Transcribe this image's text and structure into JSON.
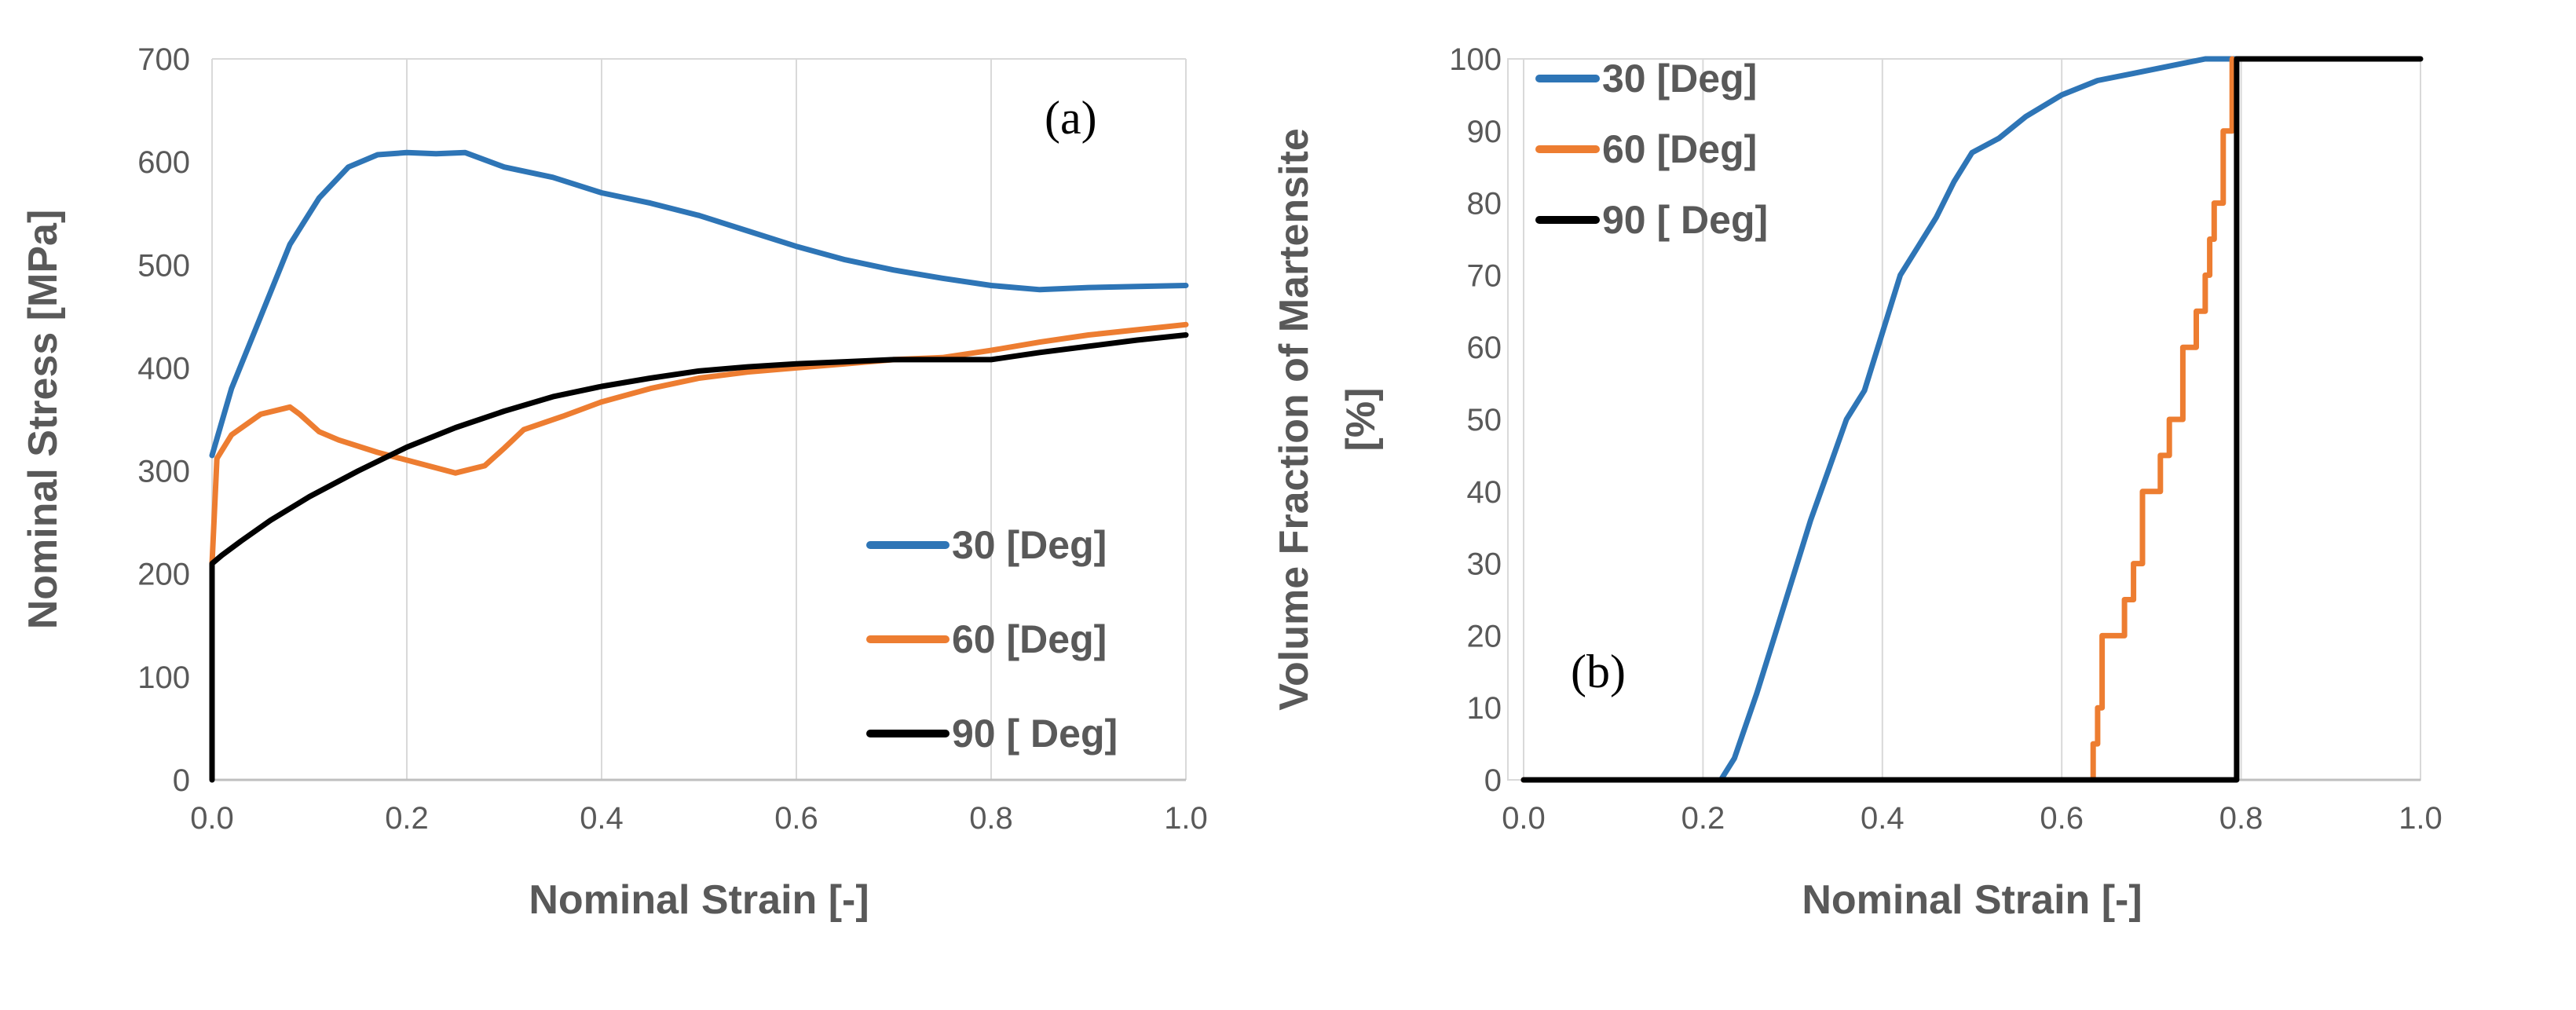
{
  "colors": {
    "s30": "#2e75b6",
    "s60": "#ed7d31",
    "s90": "#000000"
  },
  "chart_data": [
    {
      "type": "line",
      "panel_label": "(a)",
      "xlabel": "Nominal Strain [-]",
      "ylabel": "Nominal Stress [MPa]",
      "xlim": [
        0,
        1.0
      ],
      "ylim": [
        0,
        700
      ],
      "xticks": [
        "0.0",
        "0.2",
        "0.4",
        "0.6",
        "0.8",
        "1.0"
      ],
      "yticks": [
        "0",
        "100",
        "200",
        "300",
        "400",
        "500",
        "600",
        "700"
      ],
      "grid": "vertical",
      "legend_position": "bottom-right",
      "series": [
        {
          "name": "30 [Deg]",
          "x": [
            0.0,
            0.02,
            0.05,
            0.08,
            0.11,
            0.14,
            0.17,
            0.2,
            0.23,
            0.26,
            0.3,
            0.35,
            0.4,
            0.45,
            0.5,
            0.55,
            0.6,
            0.65,
            0.7,
            0.75,
            0.8,
            0.85,
            0.9,
            0.95,
            1.0
          ],
          "y": [
            315,
            380,
            450,
            520,
            565,
            595,
            607,
            609,
            608,
            609,
            595,
            585,
            570,
            560,
            548,
            533,
            518,
            505,
            495,
            487,
            480,
            476,
            478,
            479,
            480
          ]
        },
        {
          "name": "60 [Deg]",
          "x": [
            0.0,
            0.005,
            0.02,
            0.05,
            0.08,
            0.09,
            0.11,
            0.13,
            0.17,
            0.21,
            0.25,
            0.28,
            0.3,
            0.32,
            0.36,
            0.4,
            0.45,
            0.5,
            0.55,
            0.6,
            0.65,
            0.7,
            0.75,
            0.8,
            0.85,
            0.9,
            0.95,
            1.0
          ],
          "y": [
            210,
            312,
            335,
            355,
            362,
            355,
            338,
            330,
            318,
            308,
            298,
            305,
            322,
            340,
            353,
            367,
            380,
            390,
            396,
            400,
            404,
            408,
            410,
            417,
            425,
            432,
            437,
            442
          ]
        },
        {
          "name": "90 [ Deg]",
          "x": [
            0.0,
            0.0,
            0.01,
            0.03,
            0.06,
            0.1,
            0.15,
            0.2,
            0.25,
            0.3,
            0.35,
            0.4,
            0.45,
            0.5,
            0.55,
            0.6,
            0.65,
            0.7,
            0.75,
            0.8,
            0.85,
            0.9,
            0.95,
            1.0
          ],
          "y": [
            0,
            210,
            218,
            232,
            252,
            275,
            300,
            323,
            342,
            358,
            372,
            382,
            390,
            397,
            401,
            404,
            406,
            408,
            408,
            408,
            415,
            421,
            427,
            432
          ]
        }
      ]
    },
    {
      "type": "line",
      "panel_label": "(b)",
      "xlabel": "Nominal Strain [-]",
      "ylabel": "Volume Fraction of Martensite [%]",
      "ylabel_lines": [
        "Volume Fraction of Martensite",
        "[%]"
      ],
      "xlim": [
        0,
        1.0
      ],
      "ylim": [
        0,
        100
      ],
      "xticks": [
        "0.0",
        "0.2",
        "0.4",
        "0.6",
        "0.8",
        "1.0"
      ],
      "yticks": [
        "0",
        "10",
        "20",
        "30",
        "40",
        "50",
        "60",
        "70",
        "80",
        "90",
        "100"
      ],
      "grid": "vertical",
      "legend_position": "top-left",
      "series": [
        {
          "name": "30 [Deg]",
          "x": [
            0.0,
            0.22,
            0.225,
            0.235,
            0.26,
            0.28,
            0.3,
            0.32,
            0.34,
            0.36,
            0.38,
            0.4,
            0.42,
            0.44,
            0.46,
            0.48,
            0.5,
            0.53,
            0.56,
            0.6,
            0.64,
            0.68,
            0.72,
            0.76,
            0.8
          ],
          "y": [
            0,
            0,
            1,
            3,
            12,
            20,
            28,
            36,
            43,
            50,
            54,
            62,
            70,
            74,
            78,
            83,
            87,
            89,
            92,
            95,
            97,
            98,
            99,
            100,
            100
          ]
        },
        {
          "name": "60 [Deg]",
          "x": [
            0.0,
            0.635,
            0.635,
            0.64,
            0.64,
            0.645,
            0.645,
            0.67,
            0.67,
            0.68,
            0.68,
            0.69,
            0.69,
            0.71,
            0.71,
            0.72,
            0.72,
            0.735,
            0.735,
            0.75,
            0.75,
            0.76,
            0.76,
            0.765,
            0.765,
            0.77,
            0.77,
            0.78,
            0.78,
            0.785,
            0.785,
            0.79,
            0.79
          ],
          "y": [
            0,
            0,
            5,
            5,
            10,
            10,
            20,
            20,
            25,
            25,
            30,
            30,
            40,
            40,
            45,
            45,
            50,
            50,
            60,
            60,
            65,
            65,
            70,
            70,
            75,
            75,
            80,
            80,
            90,
            90,
            90,
            90,
            100
          ]
        },
        {
          "name": "90 [ Deg]",
          "x": [
            0.0,
            0.795,
            0.795,
            1.0
          ],
          "y": [
            0,
            0,
            100,
            100
          ]
        }
      ]
    }
  ]
}
